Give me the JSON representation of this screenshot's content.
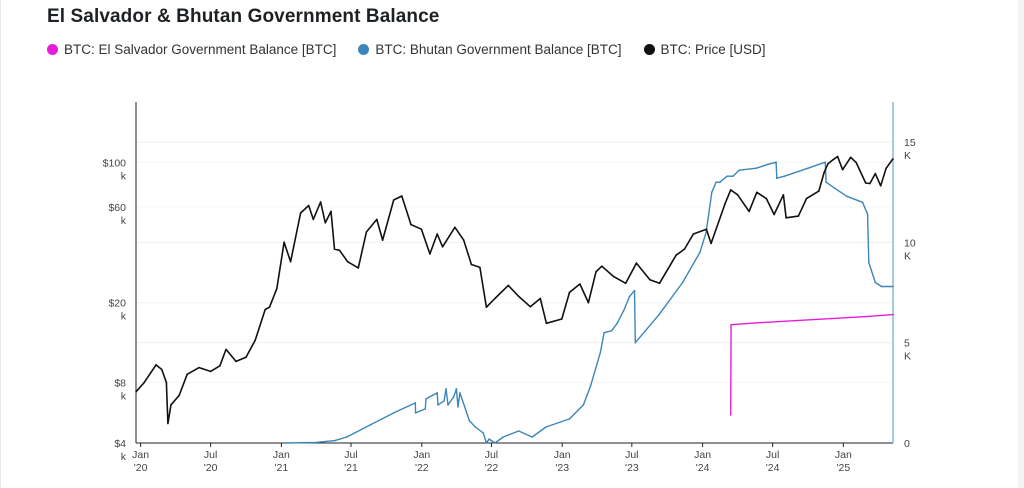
{
  "title": "El Salvador & Bhutan Government Balance",
  "legend": [
    {
      "label": "BTC: El Salvador Government Balance [BTC]",
      "color": "#e81cdb"
    },
    {
      "label": "BTC: Bhutan Government Balance [BTC]",
      "color": "#3d86b8"
    },
    {
      "label": "BTC: Price [USD]",
      "color": "#111111"
    }
  ],
  "chart_data": {
    "type": "line",
    "x_axis": {
      "range": [
        "2019-12-20",
        "2025-05-10"
      ],
      "ticks": [
        {
          "date": "2020-01-01",
          "line1": "Jan",
          "line2": "'20"
        },
        {
          "date": "2020-07-01",
          "line1": "Jul",
          "line2": "'20"
        },
        {
          "date": "2021-01-01",
          "line1": "Jan",
          "line2": "'21"
        },
        {
          "date": "2021-07-01",
          "line1": "Jul",
          "line2": "'21"
        },
        {
          "date": "2022-01-01",
          "line1": "Jan",
          "line2": "'22"
        },
        {
          "date": "2022-07-01",
          "line1": "Jul",
          "line2": "'22"
        },
        {
          "date": "2023-01-01",
          "line1": "Jan",
          "line2": "'23"
        },
        {
          "date": "2023-07-01",
          "line1": "Jul",
          "line2": "'23"
        },
        {
          "date": "2024-01-01",
          "line1": "Jan",
          "line2": "'24"
        },
        {
          "date": "2024-07-01",
          "line1": "Jul",
          "line2": "'24"
        },
        {
          "date": "2025-01-01",
          "line1": "Jan",
          "line2": "'25"
        }
      ]
    },
    "y_left": {
      "scale": "log",
      "range": [
        4000,
        200000
      ],
      "ticks": [
        {
          "value": 4000,
          "line1": "$4",
          "line2": "k"
        },
        {
          "value": 8000,
          "line1": "$8",
          "line2": "k"
        },
        {
          "value": 20000,
          "line1": "$20",
          "line2": "k"
        },
        {
          "value": 60000,
          "line1": "$60",
          "line2": "k"
        },
        {
          "value": 100000,
          "line1": "$100",
          "line2": "k"
        }
      ]
    },
    "y_right": {
      "scale": "linear",
      "range": [
        0,
        17000
      ],
      "ticks": [
        {
          "value": 0,
          "line1": "0",
          "line2": ""
        },
        {
          "value": 5000,
          "line1": "5",
          "line2": "K"
        },
        {
          "value": 10000,
          "line1": "10",
          "line2": "K"
        },
        {
          "value": 15000,
          "line1": "15",
          "line2": "K"
        }
      ]
    },
    "series": [
      {
        "name": "BTC: Price [USD]",
        "axis": "left",
        "color": "#111111",
        "points": [
          [
            "2019-12-20",
            7200
          ],
          [
            "2020-01-10",
            8000
          ],
          [
            "2020-02-10",
            9800
          ],
          [
            "2020-02-25",
            9300
          ],
          [
            "2020-03-08",
            8000
          ],
          [
            "2020-03-12",
            5000
          ],
          [
            "2020-03-20",
            6200
          ],
          [
            "2020-04-10",
            6900
          ],
          [
            "2020-05-01",
            8800
          ],
          [
            "2020-06-01",
            9500
          ],
          [
            "2020-07-01",
            9100
          ],
          [
            "2020-07-25",
            9700
          ],
          [
            "2020-08-10",
            11700
          ],
          [
            "2020-09-05",
            10200
          ],
          [
            "2020-10-01",
            10700
          ],
          [
            "2020-10-25",
            13000
          ],
          [
            "2020-11-20",
            18500
          ],
          [
            "2020-12-01",
            19000
          ],
          [
            "2020-12-20",
            23500
          ],
          [
            "2021-01-08",
            40000
          ],
          [
            "2021-01-25",
            32000
          ],
          [
            "2021-02-20",
            56000
          ],
          [
            "2021-03-13",
            61000
          ],
          [
            "2021-03-25",
            52000
          ],
          [
            "2021-04-13",
            63500
          ],
          [
            "2021-04-25",
            50000
          ],
          [
            "2021-05-10",
            57000
          ],
          [
            "2021-05-19",
            37000
          ],
          [
            "2021-06-01",
            36500
          ],
          [
            "2021-06-22",
            32000
          ],
          [
            "2021-07-20",
            29800
          ],
          [
            "2021-08-10",
            45000
          ],
          [
            "2021-09-06",
            52000
          ],
          [
            "2021-09-21",
            41000
          ],
          [
            "2021-10-20",
            65000
          ],
          [
            "2021-11-10",
            68000
          ],
          [
            "2021-12-04",
            49000
          ],
          [
            "2021-12-31",
            46500
          ],
          [
            "2022-01-22",
            35000
          ],
          [
            "2022-02-10",
            44000
          ],
          [
            "2022-02-24",
            38000
          ],
          [
            "2022-03-28",
            47500
          ],
          [
            "2022-04-20",
            41000
          ],
          [
            "2022-05-10",
            31000
          ],
          [
            "2022-06-01",
            30000
          ],
          [
            "2022-06-18",
            19000
          ],
          [
            "2022-07-10",
            21000
          ],
          [
            "2022-08-14",
            24400
          ],
          [
            "2022-09-10",
            21500
          ],
          [
            "2022-10-10",
            19100
          ],
          [
            "2022-11-05",
            21000
          ],
          [
            "2022-11-21",
            15800
          ],
          [
            "2022-12-31",
            16600
          ],
          [
            "2023-01-20",
            22500
          ],
          [
            "2023-02-16",
            24800
          ],
          [
            "2023-03-10",
            20000
          ],
          [
            "2023-03-30",
            28500
          ],
          [
            "2023-04-14",
            30400
          ],
          [
            "2023-05-15",
            27000
          ],
          [
            "2023-06-15",
            25000
          ],
          [
            "2023-07-13",
            31500
          ],
          [
            "2023-08-17",
            26000
          ],
          [
            "2023-09-11",
            25000
          ],
          [
            "2023-10-24",
            34500
          ],
          [
            "2023-11-15",
            37000
          ],
          [
            "2023-12-08",
            44000
          ],
          [
            "2024-01-11",
            46500
          ],
          [
            "2024-01-23",
            39500
          ],
          [
            "2024-02-28",
            62000
          ],
          [
            "2024-03-14",
            73000
          ],
          [
            "2024-04-01",
            69000
          ],
          [
            "2024-05-01",
            57000
          ],
          [
            "2024-05-21",
            71000
          ],
          [
            "2024-06-15",
            66000
          ],
          [
            "2024-07-05",
            55000
          ],
          [
            "2024-07-29",
            69000
          ],
          [
            "2024-08-05",
            53000
          ],
          [
            "2024-09-06",
            54000
          ],
          [
            "2024-09-27",
            66000
          ],
          [
            "2024-10-29",
            72000
          ],
          [
            "2024-11-12",
            89000
          ],
          [
            "2024-11-22",
            98500
          ],
          [
            "2024-12-05",
            103000
          ],
          [
            "2024-12-17",
            107000
          ],
          [
            "2024-12-30",
            92000
          ],
          [
            "2025-01-20",
            106000
          ],
          [
            "2025-02-03",
            100000
          ],
          [
            "2025-02-28",
            79000
          ],
          [
            "2025-03-11",
            78500
          ],
          [
            "2025-03-25",
            88000
          ],
          [
            "2025-04-08",
            76500
          ],
          [
            "2025-04-22",
            93500
          ],
          [
            "2025-05-08",
            103000
          ],
          [
            "2025-05-10",
            104000
          ]
        ]
      },
      {
        "name": "BTC: Bhutan Government Balance [BTC]",
        "axis": "right",
        "color": "#3d86b8",
        "points": [
          [
            "2021-01-10",
            0
          ],
          [
            "2021-04-01",
            30
          ],
          [
            "2021-05-20",
            120
          ],
          [
            "2021-06-20",
            300
          ],
          [
            "2021-08-20",
            900
          ],
          [
            "2021-10-20",
            1500
          ],
          [
            "2021-12-15",
            2000
          ],
          [
            "2021-12-16",
            1500
          ],
          [
            "2022-01-10",
            1700
          ],
          [
            "2022-01-12",
            2200
          ],
          [
            "2022-02-10",
            2500
          ],
          [
            "2022-02-12",
            1900
          ],
          [
            "2022-02-28",
            2100
          ],
          [
            "2022-03-05",
            2700
          ],
          [
            "2022-03-10",
            1900
          ],
          [
            "2022-03-25",
            2300
          ],
          [
            "2022-04-01",
            2700
          ],
          [
            "2022-04-05",
            1800
          ],
          [
            "2022-04-10",
            2500
          ],
          [
            "2022-05-05",
            1100
          ],
          [
            "2022-05-20",
            800
          ],
          [
            "2022-06-10",
            500
          ],
          [
            "2022-06-18",
            0
          ],
          [
            "2022-06-25",
            200
          ],
          [
            "2022-07-10",
            0
          ],
          [
            "2022-08-01",
            300
          ],
          [
            "2022-09-10",
            600
          ],
          [
            "2022-10-15",
            300
          ],
          [
            "2022-11-20",
            800
          ],
          [
            "2023-01-20",
            1200
          ],
          [
            "2023-02-25",
            1900
          ],
          [
            "2023-03-15",
            2800
          ],
          [
            "2023-04-10",
            4500
          ],
          [
            "2023-04-20",
            5500
          ],
          [
            "2023-05-10",
            5600
          ],
          [
            "2023-05-25",
            6000
          ],
          [
            "2023-06-10",
            6600
          ],
          [
            "2023-06-25",
            7300
          ],
          [
            "2023-07-08",
            7600
          ],
          [
            "2023-07-10",
            5000
          ],
          [
            "2023-09-10",
            6400
          ],
          [
            "2023-11-10",
            8000
          ],
          [
            "2023-12-25",
            9500
          ],
          [
            "2024-01-10",
            10500
          ],
          [
            "2024-01-25",
            12500
          ],
          [
            "2024-02-05",
            13000
          ],
          [
            "2024-02-15",
            13000
          ],
          [
            "2024-03-05",
            13300
          ],
          [
            "2024-03-20",
            13300
          ],
          [
            "2024-04-05",
            13600
          ],
          [
            "2024-05-20",
            13700
          ],
          [
            "2024-06-20",
            13900
          ],
          [
            "2024-07-10",
            14000
          ],
          [
            "2024-07-12",
            13200
          ],
          [
            "2024-08-01",
            13300
          ],
          [
            "2024-10-01",
            13700
          ],
          [
            "2024-11-15",
            14000
          ],
          [
            "2024-11-17",
            13000
          ],
          [
            "2024-12-10",
            12700
          ],
          [
            "2025-01-10",
            12300
          ],
          [
            "2025-02-20",
            12000
          ],
          [
            "2025-03-05",
            11400
          ],
          [
            "2025-03-08",
            9000
          ],
          [
            "2025-03-25",
            8000
          ],
          [
            "2025-04-10",
            7800
          ],
          [
            "2025-05-10",
            7800
          ]
        ]
      },
      {
        "name": "BTC: El Salvador Government Balance [BTC]",
        "axis": "right",
        "color": "#e81cdb",
        "points": [
          [
            "2024-03-14",
            1400
          ],
          [
            "2024-03-15",
            5900
          ],
          [
            "2024-06-01",
            6000
          ],
          [
            "2024-09-01",
            6100
          ],
          [
            "2024-12-01",
            6200
          ],
          [
            "2025-03-01",
            6300
          ],
          [
            "2025-05-10",
            6400
          ]
        ]
      }
    ]
  }
}
